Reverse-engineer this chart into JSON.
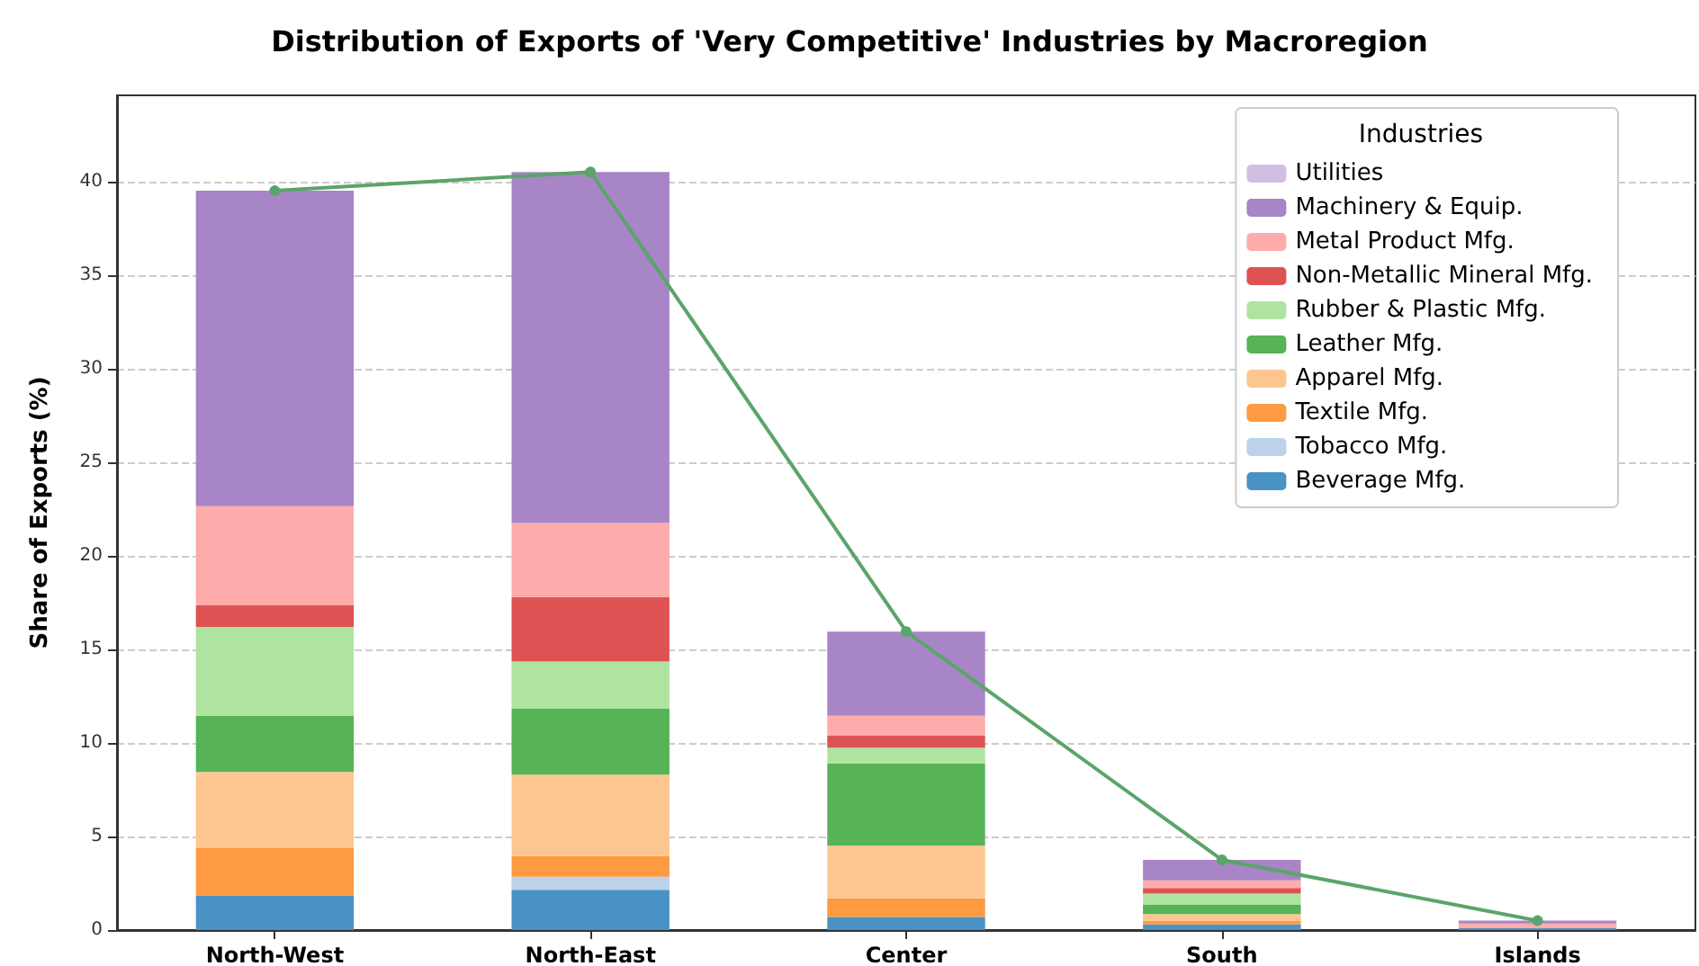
{
  "chart_data": {
    "type": "bar",
    "title": "Distribution of Exports of 'Very Competitive' Industries by Macroregion",
    "ylabel": "Share of Exports (%)",
    "legend_title": "Industries",
    "categories": [
      "North-West",
      "North-East",
      "Center",
      "South",
      "Islands"
    ],
    "stacked": true,
    "series": [
      {
        "name": "Beverage Mfg.",
        "color": "#4a92c5",
        "values": [
          1.85,
          2.15,
          0.7,
          0.3,
          0.1
        ]
      },
      {
        "name": "Tobacco Mfg.",
        "color": "#bcd2ea",
        "values": [
          0,
          0.7,
          0,
          0,
          0
        ]
      },
      {
        "name": "Textile Mfg.",
        "color": "#fd9a42",
        "values": [
          2.55,
          1.1,
          1.0,
          0.2,
          0
        ]
      },
      {
        "name": "Apparel Mfg.",
        "color": "#fdc690",
        "values": [
          4.05,
          4.35,
          2.8,
          0.35,
          0
        ]
      },
      {
        "name": "Leather Mfg.",
        "color": "#56b356",
        "values": [
          3.0,
          3.55,
          4.4,
          0.5,
          0
        ]
      },
      {
        "name": "Rubber & Plastic Mfg.",
        "color": "#aee4a0",
        "values": [
          4.75,
          2.5,
          0.85,
          0.6,
          0
        ]
      },
      {
        "name": "Non-Metallic Mineral Mfg.",
        "color": "#dd5354",
        "values": [
          1.15,
          3.45,
          0.65,
          0.3,
          0
        ]
      },
      {
        "name": "Metal Product Mfg.",
        "color": "#feabab",
        "values": [
          5.3,
          3.95,
          1.05,
          0.4,
          0.25
        ]
      },
      {
        "name": "Machinery & Equip.",
        "color": "#a785c7",
        "values": [
          16.85,
          18.75,
          4.5,
          1.1,
          0.15
        ]
      },
      {
        "name": "Utilities",
        "color": "#d2bde3",
        "values": [
          0,
          0,
          0,
          0,
          0
        ]
      },
      {
        "type": "line",
        "color": "#5aa56a",
        "values": [
          39.5,
          40.5,
          15.95,
          3.75,
          0.5
        ]
      }
    ],
    "ylim": [
      0,
      44.6
    ],
    "yticks": [
      0,
      5,
      10,
      15,
      20,
      25,
      30,
      35,
      40
    ],
    "grid": "y",
    "legend": "top right",
    "marker": "circle"
  }
}
